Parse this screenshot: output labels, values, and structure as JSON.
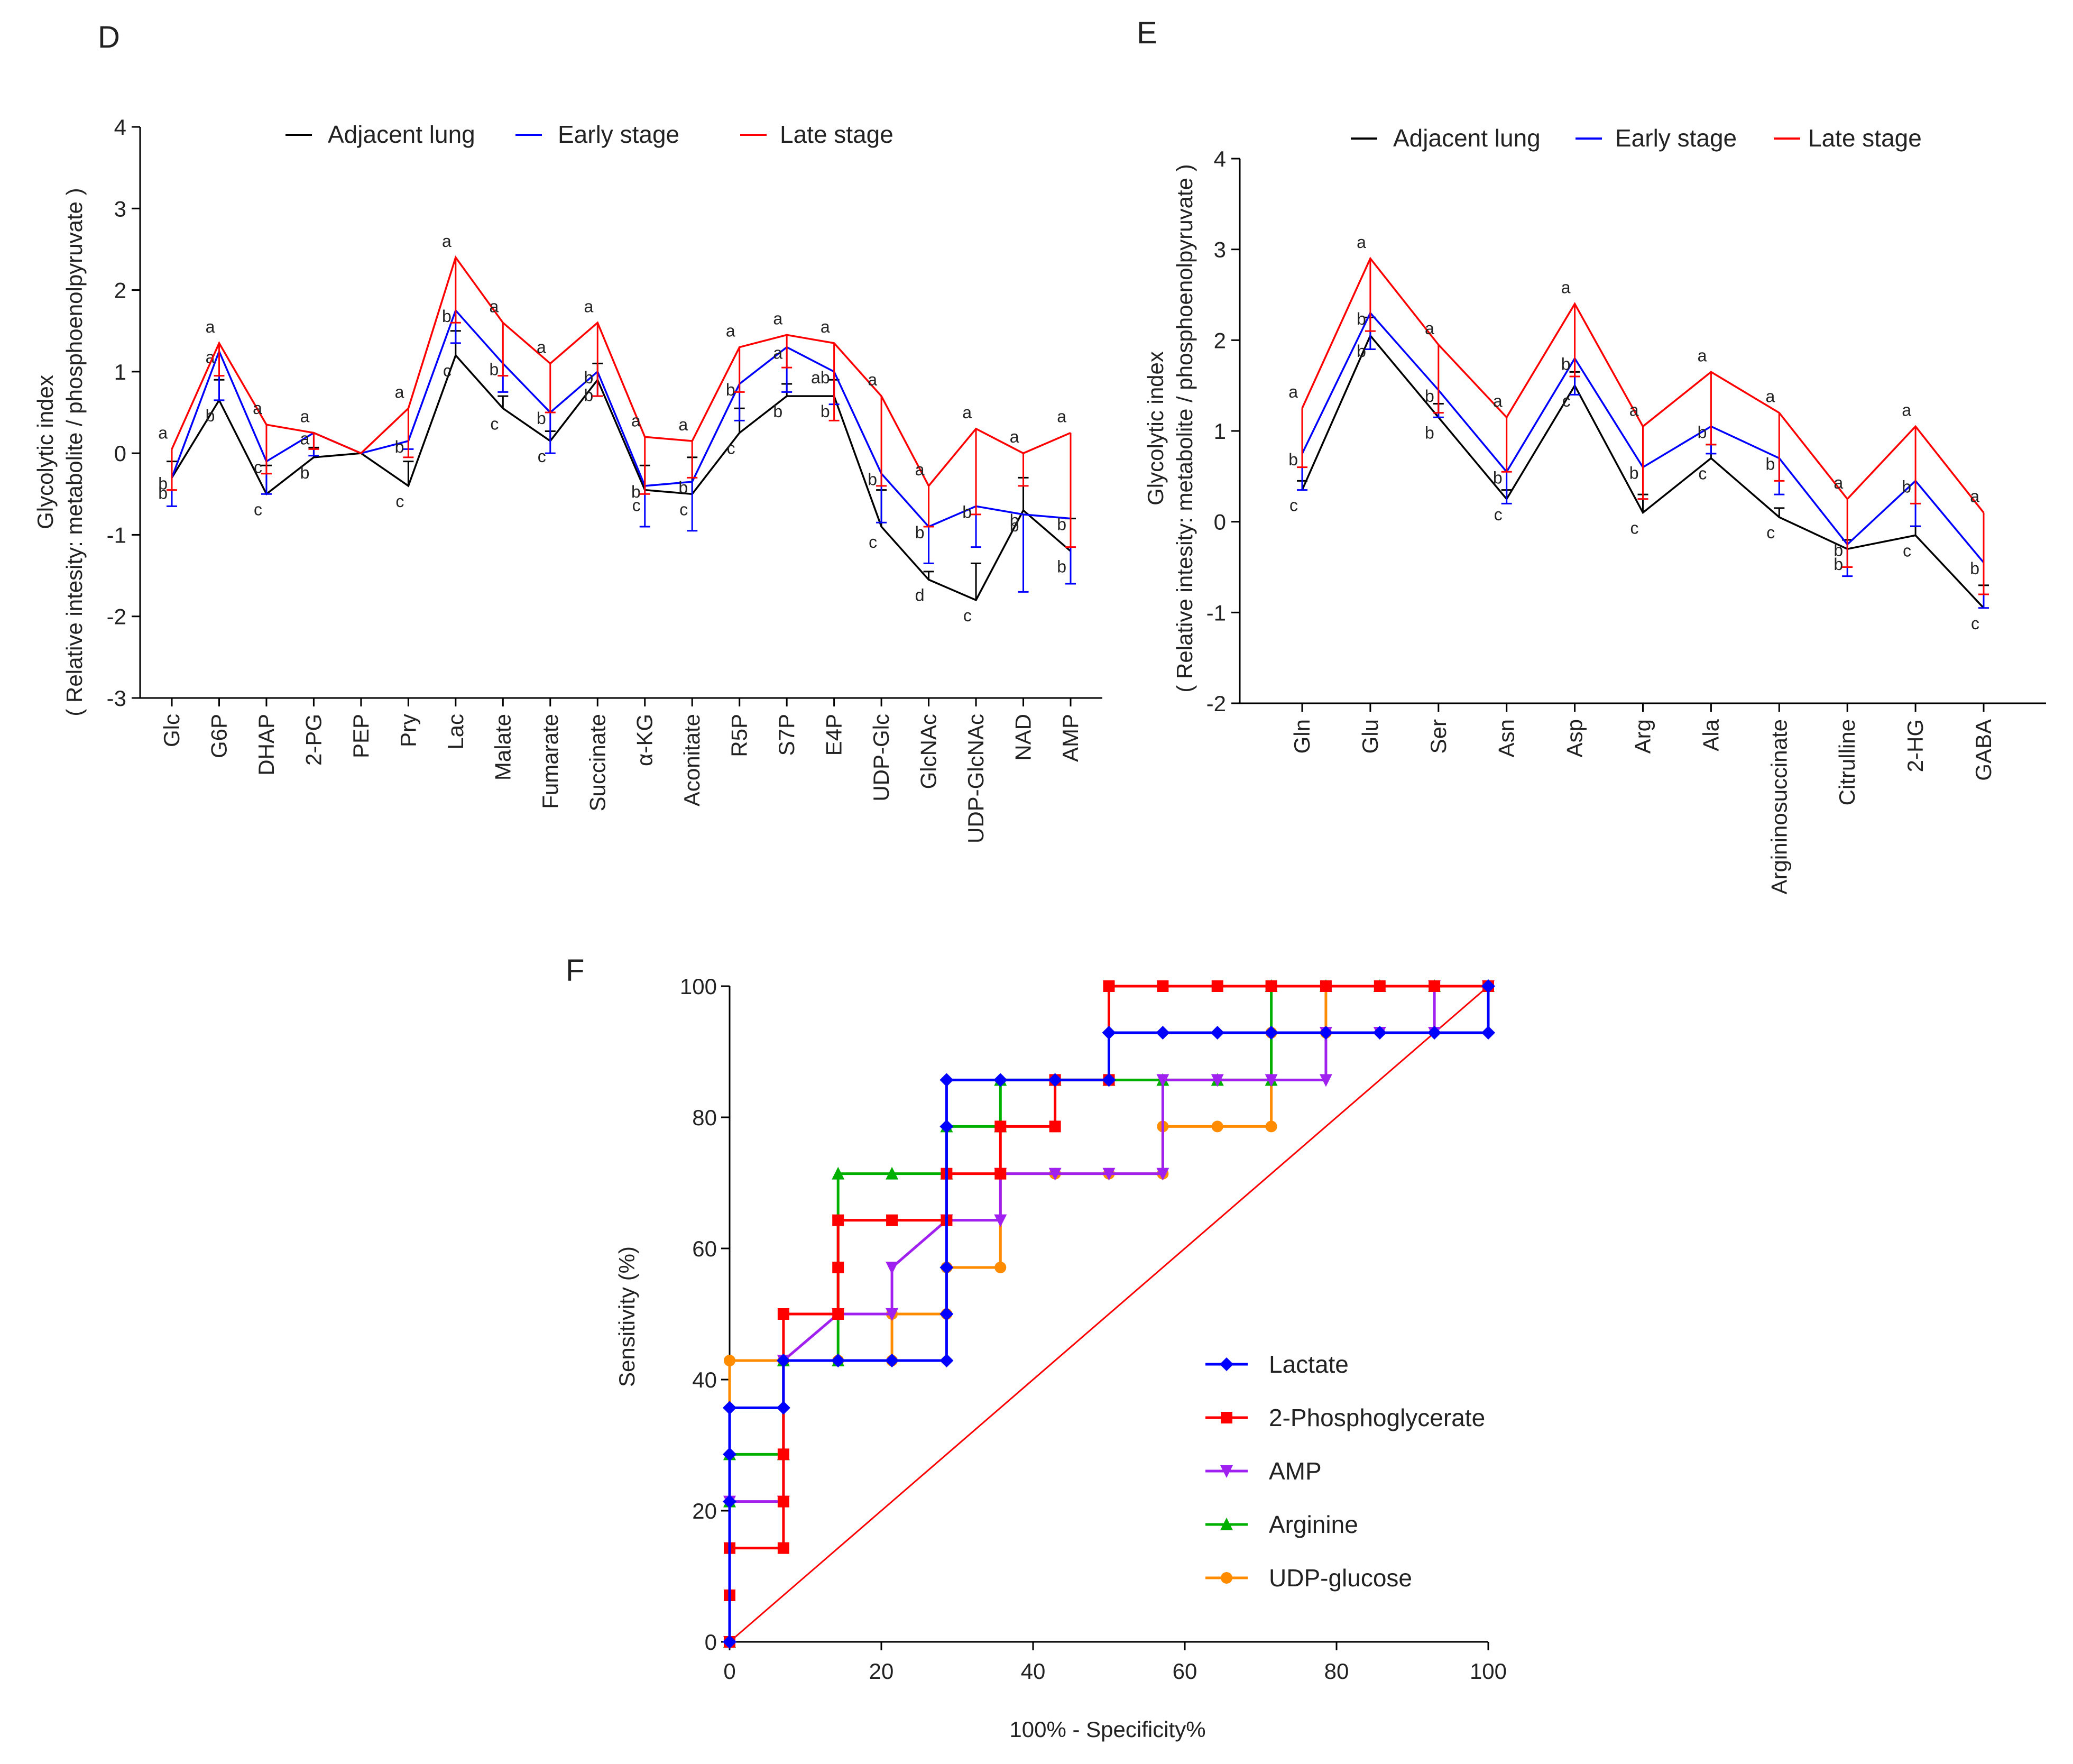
{
  "figure": {
    "panels": [
      "D",
      "E",
      "F"
    ]
  },
  "chart_data": [
    {
      "panel": "D",
      "type": "line",
      "ylabel_line1": "Glycolytic index",
      "ylabel_line2": "( Relative intesity: metabolite / phosphoenolpyruvate )",
      "xlabel": "",
      "ylim": [
        -3,
        4
      ],
      "yticks": [
        -3,
        -2,
        -1,
        0,
        1,
        2,
        3,
        4
      ],
      "categories": [
        "Glc",
        "G6P",
        "DHAP",
        "2-PG",
        "PEP",
        "Pry",
        "Lac",
        "Malate",
        "Fumarate",
        "Succinate",
        "α-KG",
        "Aconitate",
        "R5P",
        "S7P",
        "E4P",
        "UDP-Glc",
        "GlcNAc",
        "UDP-GlcNAc",
        "NAD",
        "AMP"
      ],
      "series": [
        {
          "name": "Adjacent lung",
          "color": "#000000",
          "values": [
            -0.3,
            0.65,
            -0.5,
            -0.05,
            0,
            -0.4,
            1.2,
            0.55,
            0.15,
            0.9,
            -0.45,
            -0.5,
            0.25,
            0.7,
            0.7,
            -0.9,
            -1.55,
            -1.8,
            -0.7,
            -1.2
          ],
          "errors": [
            0.2,
            0.25,
            0.35,
            0.12,
            0,
            0.3,
            0.3,
            0.15,
            0.12,
            0.2,
            0.3,
            0.45,
            0.3,
            0.15,
            0.2,
            0.45,
            0.1,
            0.45,
            0.4,
            0.4
          ],
          "sig": [
            "b",
            "b",
            "c",
            "b",
            "",
            "c",
            "c",
            "c",
            "c",
            "b",
            "c",
            "c",
            "c",
            "b",
            "b",
            "c",
            "d",
            "c",
            "b",
            "b"
          ]
        },
        {
          "name": "Early stage",
          "color": "#0000ff",
          "values": [
            -0.3,
            1.25,
            -0.1,
            0.25,
            0,
            0.15,
            1.75,
            1.1,
            0.5,
            1.0,
            -0.4,
            -0.35,
            0.85,
            1.3,
            1.0,
            -0.25,
            -0.9,
            -0.65,
            -0.75,
            -0.8
          ],
          "errors": [
            0.35,
            0.6,
            0.4,
            0.28,
            0,
            0.1,
            0.4,
            0.35,
            0.5,
            0.3,
            0.5,
            0.6,
            0.45,
            0.55,
            0.4,
            0.6,
            0.45,
            0.5,
            0.95,
            0.8
          ],
          "sig": [
            "b",
            "a",
            "c",
            "a",
            "",
            "b",
            "b",
            "b",
            "b",
            "b",
            "b",
            "b",
            "b",
            "a",
            "ab",
            "b",
            "b",
            "b",
            "b",
            "b"
          ]
        },
        {
          "name": "Late stage",
          "color": "#ff0000",
          "values": [
            0.05,
            1.35,
            0.35,
            0.25,
            0,
            0.55,
            2.4,
            1.6,
            1.1,
            1.6,
            0.2,
            0.15,
            1.3,
            1.45,
            1.35,
            0.7,
            -0.4,
            0.3,
            0,
            0.25
          ],
          "errors": [
            0.5,
            0.4,
            0.6,
            0.2,
            0,
            0.6,
            0.8,
            0.65,
            0.6,
            0.9,
            0.7,
            0.45,
            0.55,
            0.4,
            0.95,
            1.1,
            0.5,
            1.05,
            0.4,
            1.4
          ],
          "sig": [
            "a",
            "a",
            "a",
            "a",
            "",
            "a",
            "a",
            "a",
            "a",
            "a",
            "a",
            "a",
            "a",
            "a",
            "a",
            "a",
            "a",
            "a",
            "a",
            "a"
          ]
        }
      ]
    },
    {
      "panel": "E",
      "type": "line",
      "ylabel_line1": "Glycolytic index",
      "ylabel_line2": "( Relative intesity: metabolite / phosphoenolpyruvate )",
      "xlabel": "",
      "ylim": [
        -2,
        4
      ],
      "yticks": [
        -2,
        -1,
        0,
        1,
        2,
        3,
        4
      ],
      "categories": [
        "Gln",
        "Glu",
        "Ser",
        "Asn",
        "Asp",
        "Arg",
        "Ala",
        "Argininosuccinate",
        "Citrulline",
        "2-HG",
        "GABA"
      ],
      "series": [
        {
          "name": "Adjacent lung",
          "color": "#000000",
          "values": [
            0.35,
            2.05,
            1.15,
            0.25,
            1.5,
            0.1,
            0.7,
            0.05,
            -0.3,
            -0.15,
            -0.95
          ],
          "errors": [
            0.1,
            0.2,
            0.15,
            0.1,
            0.15,
            0.2,
            0.15,
            0.1,
            0.1,
            0.1,
            0.25
          ],
          "sig": [
            "c",
            "b",
            "b",
            "c",
            "c",
            "c",
            "c",
            "c",
            "b",
            "c",
            "c"
          ]
        },
        {
          "name": "Early stage",
          "color": "#0000ff",
          "values": [
            0.75,
            2.3,
            1.45,
            0.55,
            1.8,
            0.6,
            1.05,
            0.7,
            -0.25,
            0.45,
            -0.45
          ],
          "errors": [
            0.4,
            0.4,
            0.3,
            0.35,
            0.4,
            0.35,
            0.3,
            0.4,
            0.35,
            0.5,
            0.5
          ],
          "sig": [
            "b",
            "b",
            "b",
            "b",
            "b",
            "b",
            "b",
            "b",
            "b",
            "b",
            "b"
          ]
        },
        {
          "name": "Late stage",
          "color": "#ff0000",
          "values": [
            1.25,
            2.9,
            1.95,
            1.15,
            2.4,
            1.05,
            1.65,
            1.2,
            0.25,
            1.05,
            0.1
          ],
          "errors": [
            0.65,
            0.8,
            0.75,
            0.6,
            0.8,
            0.8,
            0.8,
            0.75,
            0.75,
            0.85,
            0.9
          ],
          "sig": [
            "a",
            "a",
            "a",
            "a",
            "a",
            "a",
            "a",
            "a",
            "a",
            "a",
            "a"
          ]
        }
      ]
    },
    {
      "panel": "F",
      "type": "line",
      "xlabel": "100% - Specificity%",
      "ylabel": "Sensitivity (%)",
      "xlim": [
        0,
        100
      ],
      "ylim": [
        0,
        100
      ],
      "xticks": [
        0,
        20,
        40,
        60,
        80,
        100
      ],
      "yticks": [
        0,
        20,
        40,
        60,
        80,
        100
      ],
      "reference_line": {
        "x": [
          0,
          100
        ],
        "y": [
          0,
          100
        ],
        "color": "#ff0000"
      },
      "series": [
        {
          "name": "UDP-glucose",
          "color": "#ff8c00",
          "marker": "circle",
          "x": [
            0,
            0,
            7.1,
            7.1,
            14.3,
            21.4,
            21.4,
            28.6,
            28.6,
            35.7,
            35.7,
            42.9,
            50,
            57.1,
            57.1,
            64.3,
            71.4,
            71.4,
            78.6,
            78.6,
            85.7,
            92.9,
            92.9,
            100
          ],
          "y": [
            0,
            42.9,
            42.9,
            42.9,
            42.9,
            42.9,
            50,
            50,
            57.1,
            57.1,
            71.4,
            71.4,
            71.4,
            71.4,
            78.6,
            78.6,
            78.6,
            92.9,
            92.9,
            100,
            100,
            100,
            100,
            100
          ]
        },
        {
          "name": "Arginine",
          "color": "#00b000",
          "marker": "triangle-up",
          "x": [
            0,
            0,
            0,
            7.1,
            7.1,
            14.3,
            14.3,
            21.4,
            28.6,
            28.6,
            35.7,
            35.7,
            42.9,
            50,
            57.1,
            64.3,
            71.4,
            71.4,
            78.6,
            85.7,
            92.9,
            100
          ],
          "y": [
            0,
            21.4,
            28.6,
            28.6,
            42.9,
            42.9,
            71.4,
            71.4,
            71.4,
            78.6,
            78.6,
            85.7,
            85.7,
            85.7,
            85.7,
            85.7,
            85.7,
            100,
            100,
            100,
            100,
            100
          ]
        },
        {
          "name": "AMP",
          "color": "#a020f0",
          "marker": "triangle-down",
          "x": [
            0,
            0,
            7.1,
            7.1,
            14.3,
            21.4,
            21.4,
            28.6,
            35.7,
            35.7,
            42.9,
            50,
            57.1,
            57.1,
            64.3,
            71.4,
            78.6,
            78.6,
            85.7,
            92.9,
            92.9,
            100
          ],
          "y": [
            0,
            21.4,
            21.4,
            42.9,
            50,
            50,
            57.1,
            64.3,
            64.3,
            71.4,
            71.4,
            71.4,
            71.4,
            85.7,
            85.7,
            85.7,
            85.7,
            92.9,
            92.9,
            92.9,
            100,
            100
          ]
        },
        {
          "name": "2-Phosphoglycerate",
          "color": "#ff0000",
          "marker": "square",
          "x": [
            0,
            0,
            0,
            7.1,
            7.1,
            7.1,
            7.1,
            14.3,
            14.3,
            14.3,
            21.4,
            28.6,
            28.6,
            35.7,
            35.7,
            42.9,
            42.9,
            50,
            50,
            57.1,
            64.3,
            71.4,
            78.6,
            85.7,
            92.9,
            100
          ],
          "y": [
            0,
            7.1,
            14.3,
            14.3,
            21.4,
            28.6,
            50,
            50,
            57.1,
            64.3,
            64.3,
            64.3,
            71.4,
            71.4,
            78.6,
            78.6,
            85.7,
            85.7,
            100,
            100,
            100,
            100,
            100,
            100,
            100,
            100
          ]
        },
        {
          "name": "Lactate",
          "color": "#0000ff",
          "marker": "diamond",
          "x": [
            0,
            0,
            0,
            0,
            7.1,
            7.1,
            14.3,
            21.4,
            28.6,
            28.6,
            28.6,
            28.6,
            28.6,
            35.7,
            42.9,
            50,
            50,
            57.1,
            64.3,
            71.4,
            78.6,
            85.7,
            92.9,
            100,
            100
          ],
          "y": [
            0,
            21.4,
            28.6,
            35.7,
            35.7,
            42.9,
            42.9,
            42.9,
            42.9,
            50,
            57.1,
            78.6,
            85.7,
            85.7,
            85.7,
            85.7,
            92.9,
            92.9,
            92.9,
            92.9,
            92.9,
            92.9,
            92.9,
            92.9,
            100
          ]
        }
      ],
      "legend_order": [
        "Lactate",
        "2-Phosphoglycerate",
        "AMP",
        "Arginine",
        "UDP-glucose"
      ]
    }
  ]
}
